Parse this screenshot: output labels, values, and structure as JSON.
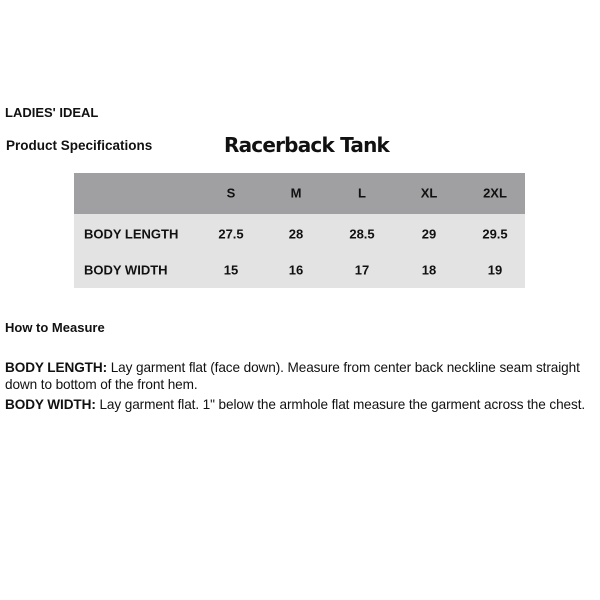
{
  "brand": "LADIES' IDEAL",
  "section_label": "Product Specifications",
  "product_title": "Racerback Tank",
  "table": {
    "sizes": [
      "S",
      "M",
      "L",
      "XL",
      "2XL"
    ],
    "rows": [
      {
        "label": "BODY LENGTH",
        "values": [
          "27.5",
          "28",
          "28.5",
          "29",
          "29.5"
        ]
      },
      {
        "label": "BODY WIDTH",
        "values": [
          "15",
          "16",
          "17",
          "18",
          "19"
        ]
      }
    ],
    "header_color": "#a09fa1",
    "body_color": "#e3e3e3"
  },
  "how_to_measure": {
    "heading": "How to Measure",
    "items": [
      {
        "term": "BODY LENGTH:",
        "text": " Lay garment flat (face down). Measure from center back neckline seam straight down to bottom of the front hem."
      },
      {
        "term": "BODY WIDTH:",
        "text": " Lay garment flat. 1\" below the armhole flat measure the garment across the chest."
      }
    ]
  }
}
